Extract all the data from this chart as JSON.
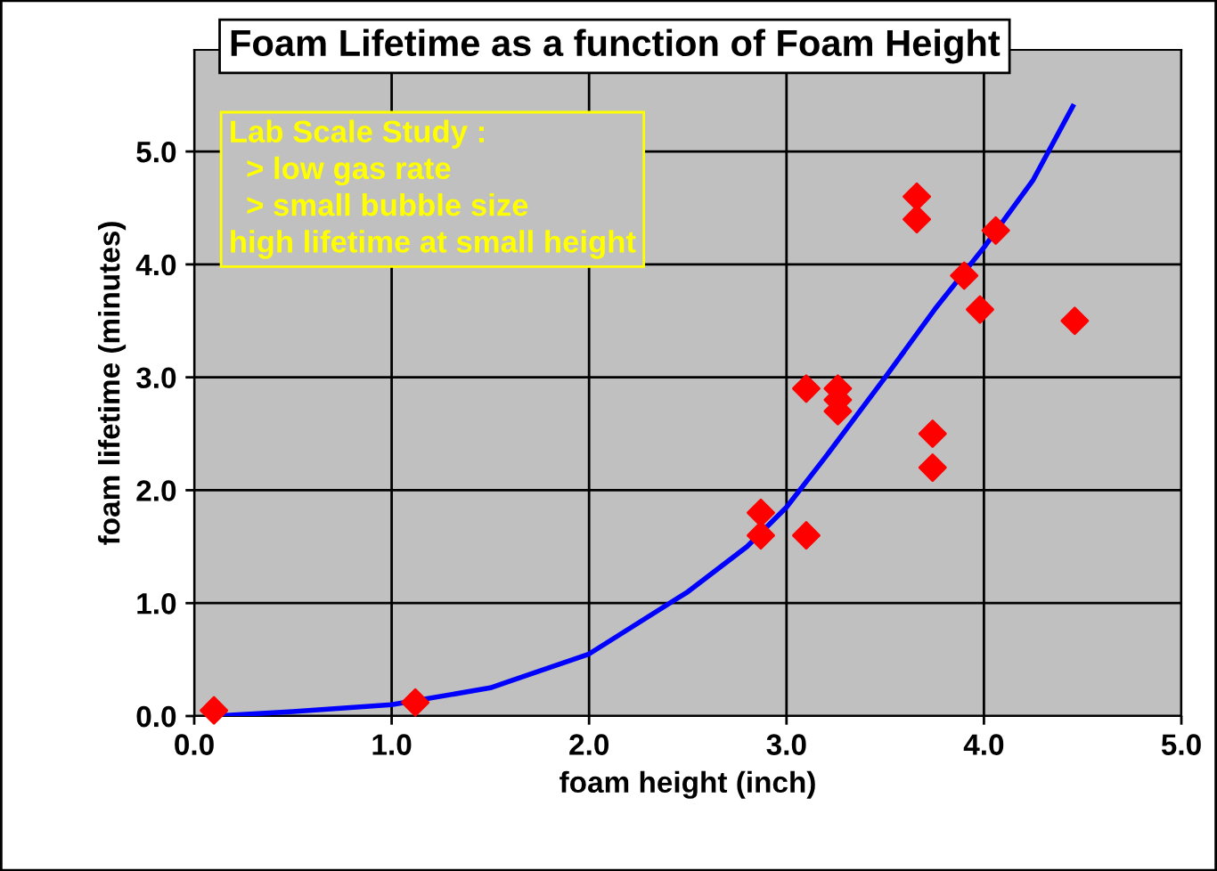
{
  "chart_data": {
    "type": "scatter",
    "title": "Foam Lifetime as a function of Foam Height",
    "xlabel": "foam height (inch)",
    "ylabel": "foam lifetime (minutes)",
    "annotations": [
      "Lab Scale Study :\n  > low gas rate\n  > small bubble size\nhigh lifetime at small height"
    ],
    "series": [
      {
        "color": "#ff0000",
        "marker": "diamond",
        "x": [
          0.1,
          1.12,
          2.87,
          2.87,
          3.1,
          3.1,
          3.26,
          3.26,
          3.26,
          3.66,
          3.66,
          3.74,
          3.74,
          3.9,
          3.98,
          4.06,
          4.46
        ],
        "values": [
          0.05,
          0.12,
          1.8,
          1.6,
          2.9,
          1.6,
          2.9,
          2.8,
          2.7,
          4.6,
          4.4,
          2.5,
          2.2,
          3.9,
          3.6,
          4.3,
          3.5
        ]
      },
      {
        "type": "line",
        "color": "#0000ff",
        "marker": "none",
        "x": [
          0.1,
          0.5,
          1.0,
          1.5,
          2.0,
          2.5,
          2.8,
          3.0,
          3.2,
          3.5,
          3.75,
          4.0,
          4.25,
          4.45
        ],
        "values": [
          0.0,
          0.04,
          0.1,
          0.25,
          0.55,
          1.1,
          1.5,
          1.85,
          2.3,
          3.0,
          3.6,
          4.15,
          4.75,
          5.4
        ]
      }
    ],
    "xlim": [
      0,
      5
    ],
    "ylim": [
      0,
      5.9
    ],
    "xticks": [
      {
        "value": 0,
        "label": "0.0"
      },
      {
        "value": 1,
        "label": "1.0"
      },
      {
        "value": 2,
        "label": "2.0"
      },
      {
        "value": 3,
        "label": "3.0"
      },
      {
        "value": 4,
        "label": "4.0"
      },
      {
        "value": 5,
        "label": "5.0"
      }
    ],
    "yticks": [
      {
        "value": 0,
        "label": "0.0"
      },
      {
        "value": 1,
        "label": "1.0"
      },
      {
        "value": 2,
        "label": "2.0"
      },
      {
        "value": 3,
        "label": "3.0"
      },
      {
        "value": 4,
        "label": "4.0"
      },
      {
        "value": 5,
        "label": "5.0"
      }
    ],
    "grid": true,
    "legend": false
  }
}
